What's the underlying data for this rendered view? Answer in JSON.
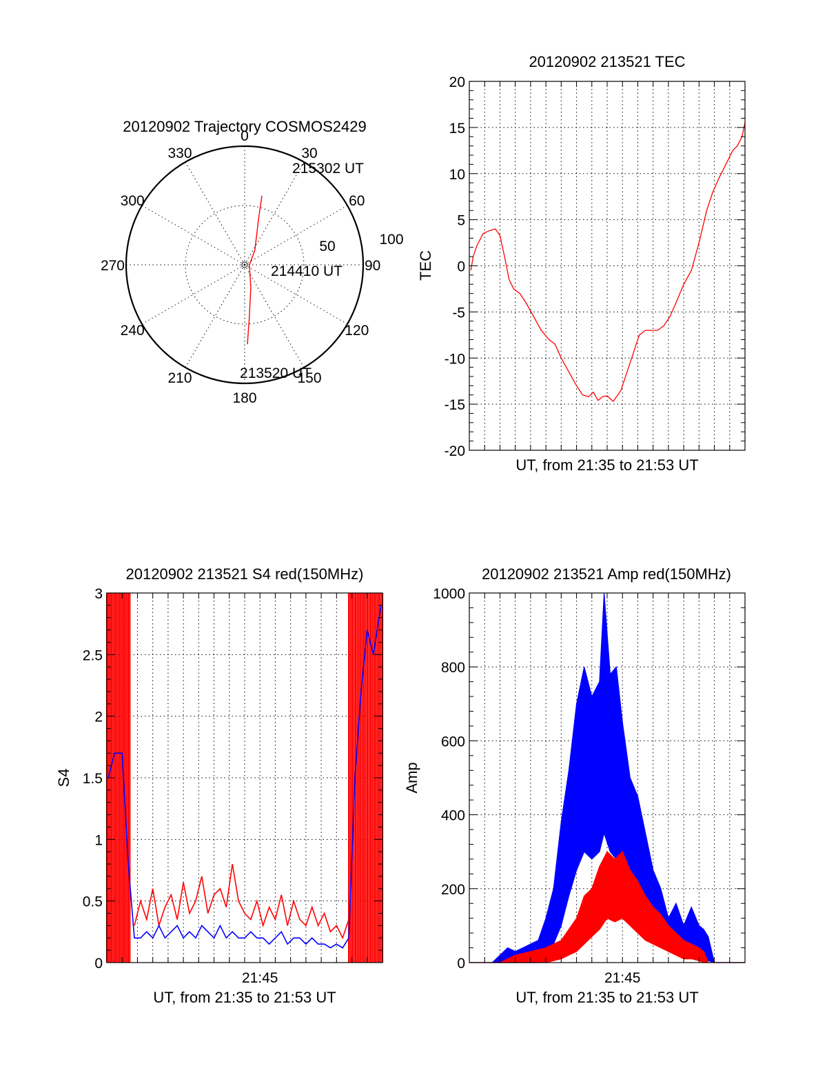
{
  "colors": {
    "red": "#ff0000",
    "blue": "#0000ff",
    "black": "#000000",
    "background": "#ffffff"
  },
  "chart_data": [
    {
      "type": "polar",
      "title": "20120902 Trajectory COSMOS2429",
      "angle_labels": [
        "0",
        "30",
        "60",
        "90",
        "120",
        "150",
        "180",
        "210",
        "240",
        "270",
        "300",
        "330"
      ],
      "radius_labels": [
        "50",
        "100"
      ],
      "rlim": [
        0,
        100
      ],
      "grid": true,
      "series": [
        {
          "color": "red",
          "points": [
            {
              "az": 14,
              "r": 60
            },
            {
              "az": 17,
              "r": 40
            },
            {
              "az": 35,
              "r": 15
            },
            {
              "az": 92,
              "r": 4
            },
            {
              "az": 165,
              "r": 20
            },
            {
              "az": 175,
              "r": 45
            },
            {
              "az": 178,
              "r": 67
            }
          ]
        }
      ],
      "annotations": [
        "215302 UT",
        "214410 UT",
        "213520 UT"
      ]
    },
    {
      "type": "line",
      "title": "20120902 213521 TEC",
      "xlabel": "UT, from 21:35 to 21:53 UT",
      "ylabel": "TEC",
      "xlim": [
        0,
        18
      ],
      "ylim": [
        -20,
        20
      ],
      "yticks": [
        "-20",
        "-15",
        "-10",
        "-5",
        "0",
        "5",
        "10",
        "15",
        "20"
      ],
      "grid": true,
      "series": [
        {
          "color": "red",
          "x": [
            0.1,
            0.25,
            0.5,
            0.9,
            1.3,
            1.7,
            2.0,
            2.3,
            2.6,
            2.9,
            3.3,
            3.7,
            4.2,
            4.7,
            5.2,
            5.6,
            6.0,
            6.5,
            7.0,
            7.4,
            7.8,
            8.1,
            8.4,
            8.7,
            9.0,
            9.4,
            9.9,
            10.3,
            10.7,
            11.1,
            11.5,
            11.9,
            12.3,
            12.7,
            13.1,
            13.5,
            14.0,
            14.5,
            15.0,
            15.5,
            15.9,
            16.3,
            16.6,
            16.9,
            17.2,
            17.5,
            17.8,
            18.0
          ],
          "y": [
            -0.5,
            1,
            2.2,
            3.5,
            3.8,
            4,
            3.3,
            1,
            -1.5,
            -2.5,
            -3,
            -4,
            -5.5,
            -7,
            -8,
            -8.5,
            -10,
            -11.5,
            -13,
            -14,
            -14.2,
            -13.7,
            -14.6,
            -14.2,
            -14.1,
            -14.7,
            -13.5,
            -11.5,
            -9.5,
            -7.5,
            -7,
            -7,
            -7,
            -6.5,
            -5.5,
            -4,
            -2,
            -0.5,
            2.5,
            6,
            8,
            9.5,
            10.5,
            11.5,
            12.5,
            13,
            14,
            15.5
          ]
        }
      ]
    },
    {
      "type": "line",
      "title": "20120902 213521 S4 red(150MHz)",
      "xlabel": "UT, from 21:35 to 21:53 UT",
      "ylabel": "S4",
      "xlim": [
        0,
        18
      ],
      "ylim": [
        0,
        3
      ],
      "yticks": [
        "0",
        "0.5",
        "1",
        "1.5",
        "2",
        "2.5",
        "3"
      ],
      "xticks": [
        "21:45"
      ],
      "grid": true,
      "series": [
        {
          "color": "red",
          "x": [
            1.8,
            2.2,
            2.6,
            3.0,
            3.4,
            3.8,
            4.2,
            4.6,
            5.0,
            5.4,
            5.8,
            6.2,
            6.6,
            7.0,
            7.4,
            7.8,
            8.2,
            8.6,
            9.0,
            9.4,
            9.8,
            10.2,
            10.6,
            11.0,
            11.4,
            11.8,
            12.2,
            12.6,
            13.0,
            13.4,
            13.8,
            14.2,
            14.6,
            15.0,
            15.4,
            15.8
          ],
          "y": [
            0.3,
            0.5,
            0.35,
            0.6,
            0.3,
            0.45,
            0.55,
            0.35,
            0.65,
            0.4,
            0.5,
            0.7,
            0.4,
            0.55,
            0.6,
            0.45,
            0.8,
            0.5,
            0.4,
            0.35,
            0.5,
            0.3,
            0.45,
            0.35,
            0.55,
            0.3,
            0.5,
            0.35,
            0.3,
            0.45,
            0.3,
            0.4,
            0.25,
            0.3,
            0.2,
            0.35
          ]
        },
        {
          "color": "blue",
          "x": [
            0.1,
            0.5,
            1.0,
            1.4,
            1.8,
            2.2,
            2.6,
            3.0,
            3.4,
            3.8,
            4.2,
            4.6,
            5.0,
            5.4,
            5.8,
            6.2,
            6.6,
            7.0,
            7.4,
            7.8,
            8.2,
            8.6,
            9.0,
            9.4,
            9.8,
            10.2,
            10.6,
            11.0,
            11.4,
            11.8,
            12.2,
            12.6,
            13.0,
            13.4,
            13.8,
            14.2,
            14.6,
            15.0,
            15.4,
            15.8,
            16.2,
            16.6,
            17.0,
            17.4,
            17.9
          ],
          "y": [
            1.5,
            1.7,
            1.7,
            0.8,
            0.2,
            0.2,
            0.25,
            0.2,
            0.3,
            0.2,
            0.25,
            0.3,
            0.2,
            0.25,
            0.2,
            0.3,
            0.25,
            0.2,
            0.3,
            0.2,
            0.25,
            0.2,
            0.2,
            0.25,
            0.2,
            0.2,
            0.15,
            0.2,
            0.25,
            0.15,
            0.2,
            0.2,
            0.15,
            0.2,
            0.15,
            0.15,
            0.12,
            0.15,
            0.12,
            0.2,
            1.5,
            2.2,
            2.7,
            2.5,
            2.9
          ]
        }
      ],
      "saturated_spikes": {
        "color": "red",
        "x_ranges": [
          [
            0.0,
            1.5
          ],
          [
            15.8,
            18.0
          ]
        ]
      }
    },
    {
      "type": "area",
      "title": "20120902 213521 Amp red(150MHz)",
      "xlabel": "UT, from 21:35 to 21:53 UT",
      "ylabel": "Amp",
      "xlim": [
        0,
        18
      ],
      "ylim": [
        0,
        1000
      ],
      "yticks": [
        "0",
        "200",
        "400",
        "600",
        "800",
        "1000"
      ],
      "xticks": [
        "21:45"
      ],
      "grid": true,
      "series": [
        {
          "color": "blue",
          "x": [
            0,
            1.5,
            2.0,
            2.5,
            3.0,
            3.5,
            4.0,
            4.5,
            5.0,
            5.5,
            6.0,
            6.5,
            7.0,
            7.5,
            8.0,
            8.5,
            8.8,
            9.2,
            9.6,
            10.0,
            10.5,
            11.0,
            11.5,
            12.0,
            12.5,
            13.0,
            13.5,
            14.0,
            14.5,
            15.0,
            15.3,
            15.6,
            16.0,
            18.0
          ],
          "peak": [
            0,
            0,
            20,
            40,
            30,
            40,
            50,
            60,
            120,
            200,
            380,
            520,
            700,
            800,
            720,
            760,
            1000,
            780,
            800,
            650,
            500,
            450,
            350,
            250,
            200,
            120,
            160,
            100,
            150,
            100,
            90,
            70,
            0,
            0
          ],
          "base": [
            0,
            0,
            0,
            0,
            0,
            0,
            0,
            0,
            20,
            50,
            100,
            180,
            250,
            300,
            280,
            300,
            350,
            300,
            280,
            250,
            200,
            150,
            120,
            80,
            50,
            30,
            40,
            20,
            30,
            20,
            10,
            5,
            0,
            0
          ]
        },
        {
          "color": "red",
          "x": [
            0,
            2.0,
            3.0,
            4.0,
            5.0,
            6.0,
            7.0,
            7.5,
            8.0,
            8.5,
            9.0,
            9.5,
            10.0,
            10.5,
            11.0,
            11.5,
            12.0,
            12.5,
            13.0,
            13.5,
            14.0,
            14.5,
            15.0,
            15.3,
            15.6,
            18.0
          ],
          "peak": [
            0,
            0,
            20,
            30,
            40,
            60,
            120,
            180,
            200,
            260,
            300,
            280,
            300,
            250,
            220,
            180,
            150,
            130,
            100,
            80,
            60,
            50,
            40,
            30,
            0,
            0
          ],
          "base": [
            0,
            0,
            0,
            0,
            0,
            10,
            30,
            50,
            70,
            90,
            120,
            110,
            120,
            100,
            80,
            60,
            50,
            40,
            30,
            20,
            10,
            10,
            5,
            0,
            0,
            0
          ]
        }
      ]
    }
  ]
}
